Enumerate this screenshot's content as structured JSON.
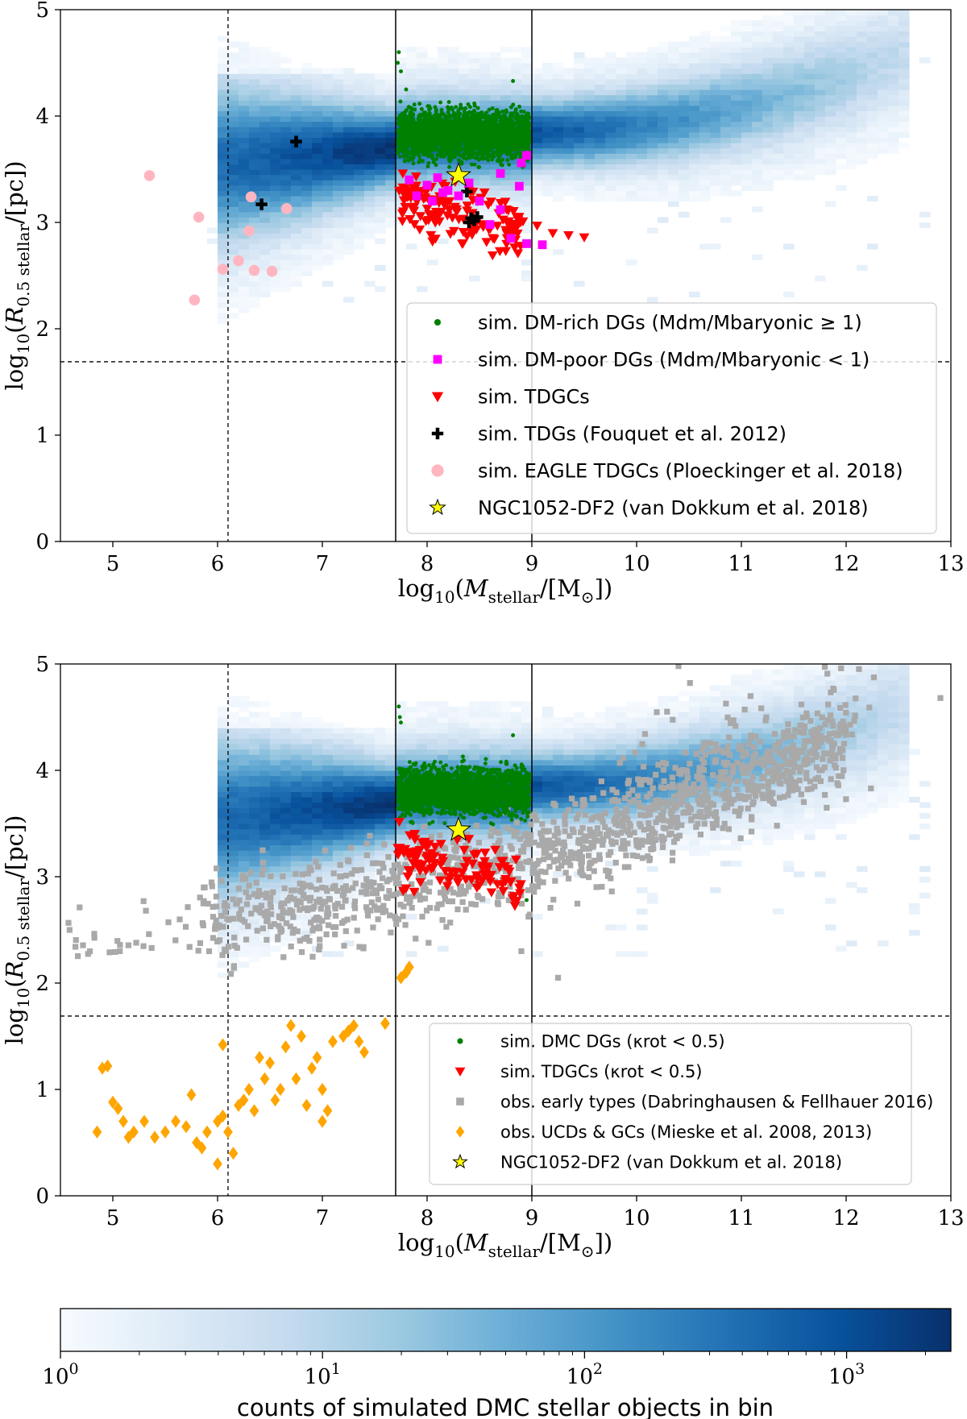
{
  "chart_data": [
    {
      "type": "scatter",
      "xlim": [
        4.5,
        13
      ],
      "ylim": [
        0,
        5
      ],
      "xticks": [
        "5",
        "6",
        "7",
        "8",
        "9",
        "10",
        "11",
        "12",
        "13"
      ],
      "yticks": [
        "0",
        "1",
        "2",
        "3",
        "4",
        "5"
      ],
      "xlabel": "log10(Mstellar/[M⊙])",
      "ylabel": "log10(R0.5 stellar/[pc])",
      "reference_lines": {
        "vertical_dashed": [
          6.1
        ],
        "vertical_solid": [
          7.7,
          9.0
        ],
        "horizontal_dashed": [
          1.69
        ]
      },
      "legend_position": "center-right",
      "legend": [
        {
          "label": "sim. DM-rich DGs (Mdm/Mbaryonic ≥ 1)",
          "marker": "dot",
          "color": "#008000"
        },
        {
          "label": "sim. DM-poor DGs (Mdm/Mbaryonic < 1)",
          "marker": "square",
          "color": "#ff00ff"
        },
        {
          "label": "sim. TDGCs",
          "marker": "triangle-down",
          "color": "#ff0000"
        },
        {
          "label": "sim. TDGs (Fouquet et al. 2012)",
          "marker": "plus",
          "color": "#000000"
        },
        {
          "label": "sim. EAGLE TDGCs (Ploeckinger et al. 2018)",
          "marker": "circle",
          "color": "#ffb6c1"
        },
        {
          "label": "NGC1052-DF2 (van Dokkum et al. 2018)",
          "marker": "star",
          "color": "#ffff00"
        }
      ],
      "series": [
        {
          "name": "sim. TDGs (Fouquet et al. 2012)",
          "points": [
            [
              6.75,
              3.76
            ],
            [
              6.42,
              3.17
            ],
            [
              8.38,
              3.29
            ],
            [
              8.42,
              3.04
            ],
            [
              8.45,
              3.02
            ],
            [
              8.48,
              3.05
            ],
            [
              8.4,
              3.0
            ]
          ]
        },
        {
          "name": "sim. EAGLE TDGCs (Ploeckinger et al. 2018)",
          "points": [
            [
              5.35,
              3.44
            ],
            [
              5.82,
              3.05
            ],
            [
              6.32,
              3.24
            ],
            [
              6.66,
              3.13
            ],
            [
              6.3,
              2.92
            ],
            [
              6.2,
              2.64
            ],
            [
              6.05,
              2.56
            ],
            [
              6.35,
              2.55
            ],
            [
              6.52,
              2.54
            ],
            [
              5.78,
              2.27
            ]
          ]
        },
        {
          "name": "sim. DM-poor DGs (Mdm/Mbaryonic < 1)",
          "points": [
            [
              8.1,
              3.42
            ],
            [
              7.83,
              3.4
            ],
            [
              8.0,
              3.35
            ],
            [
              8.2,
              3.3
            ],
            [
              8.4,
              3.37
            ],
            [
              8.7,
              3.46
            ],
            [
              8.9,
              3.56
            ],
            [
              8.95,
              3.63
            ],
            [
              8.88,
              3.34
            ],
            [
              8.5,
              3.2
            ],
            [
              8.3,
              3.25
            ],
            [
              8.05,
              3.2
            ],
            [
              7.9,
              3.25
            ],
            [
              8.15,
              3.28
            ],
            [
              8.6,
              2.98
            ],
            [
              8.8,
              2.85
            ],
            [
              8.95,
              2.8
            ],
            [
              9.1,
              2.79
            ],
            [
              8.7,
              3.12
            ]
          ]
        },
        {
          "name": "NGC1052-DF2 (van Dokkum et al. 2018)",
          "points": [
            [
              8.3,
              3.44
            ]
          ]
        }
      ]
    },
    {
      "type": "scatter",
      "xlim": [
        4.5,
        13
      ],
      "ylim": [
        0,
        5
      ],
      "xticks": [
        "5",
        "6",
        "7",
        "8",
        "9",
        "10",
        "11",
        "12",
        "13"
      ],
      "yticks": [
        "0",
        "1",
        "2",
        "3",
        "4",
        "5"
      ],
      "xlabel": "log10(Mstellar/[M⊙])",
      "ylabel": "log10(R0.5 stellar/[pc])",
      "reference_lines": {
        "vertical_dashed": [
          6.1
        ],
        "vertical_solid": [
          7.7,
          9.0
        ],
        "horizontal_dashed": [
          1.69
        ]
      },
      "legend_position": "lower-right",
      "legend": [
        {
          "label": "sim. DMC DGs (κrot < 0.5)",
          "marker": "dot",
          "color": "#008000"
        },
        {
          "label": "sim. TDGCs (κrot < 0.5)",
          "marker": "triangle-down",
          "color": "#ff0000"
        },
        {
          "label": "obs. early types (Dabringhausen & Fellhauer 2016)",
          "marker": "square",
          "color": "#a9a9a9"
        },
        {
          "label": "obs. UCDs & GCs (Mieske et al. 2008, 2013)",
          "marker": "diamond",
          "color": "#ffa500"
        },
        {
          "label": "NGC1052-DF2 (van Dokkum et al. 2018)",
          "marker": "star",
          "color": "#ffff00"
        }
      ],
      "series": [
        {
          "name": "obs. UCDs & GCs (Mieske et al. 2008, 2013)",
          "points": [
            [
              4.85,
              0.6
            ],
            [
              4.9,
              1.2
            ],
            [
              4.95,
              1.22
            ],
            [
              5.0,
              0.88
            ],
            [
              5.05,
              0.82
            ],
            [
              5.1,
              0.7
            ],
            [
              5.15,
              0.55
            ],
            [
              5.2,
              0.6
            ],
            [
              5.3,
              0.7
            ],
            [
              5.4,
              0.55
            ],
            [
              5.5,
              0.6
            ],
            [
              5.6,
              0.7
            ],
            [
              5.7,
              0.65
            ],
            [
              5.75,
              0.95
            ],
            [
              5.8,
              0.5
            ],
            [
              5.85,
              0.45
            ],
            [
              5.9,
              0.6
            ],
            [
              6.0,
              0.7
            ],
            [
              6.05,
              0.75
            ],
            [
              6.0,
              0.3
            ],
            [
              6.1,
              0.6
            ],
            [
              6.15,
              0.4
            ],
            [
              6.2,
              0.85
            ],
            [
              6.25,
              0.9
            ],
            [
              6.3,
              1.0
            ],
            [
              6.35,
              0.8
            ],
            [
              6.4,
              1.3
            ],
            [
              6.45,
              1.1
            ],
            [
              6.5,
              1.25
            ],
            [
              6.55,
              0.9
            ],
            [
              6.6,
              1.0
            ],
            [
              6.65,
              1.4
            ],
            [
              6.7,
              1.6
            ],
            [
              6.75,
              1.1
            ],
            [
              6.8,
              1.5
            ],
            [
              6.85,
              0.85
            ],
            [
              6.9,
              1.2
            ],
            [
              6.95,
              1.3
            ],
            [
              7.0,
              1.0
            ],
            [
              7.05,
              0.8
            ],
            [
              7.1,
              1.45
            ],
            [
              7.2,
              1.5
            ],
            [
              7.25,
              1.55
            ],
            [
              7.3,
              1.6
            ],
            [
              7.35,
              1.45
            ],
            [
              7.4,
              1.35
            ],
            [
              7.6,
              1.62
            ],
            [
              6.05,
              1.42
            ],
            [
              7.0,
              0.7
            ],
            [
              7.75,
              2.05
            ],
            [
              7.8,
              2.1
            ],
            [
              7.83,
              2.15
            ]
          ]
        },
        {
          "name": "NGC1052-DF2 (van Dokkum et al. 2018)",
          "points": [
            [
              8.3,
              3.44
            ]
          ]
        }
      ]
    }
  ],
  "colorbar": {
    "label": "counts of simulated DMC stellar objects in bin",
    "ticks": [
      {
        "base": "10",
        "exp": "0",
        "value": 1
      },
      {
        "base": "10",
        "exp": "1",
        "value": 10
      },
      {
        "base": "10",
        "exp": "2",
        "value": 100
      },
      {
        "base": "10",
        "exp": "3",
        "value": 1000
      }
    ],
    "range": [
      1,
      2500
    ],
    "colormap": [
      "#f7fbff",
      "#deebf7",
      "#c6dbef",
      "#9ecae1",
      "#6baed6",
      "#4292c6",
      "#2171b5",
      "#08519c",
      "#08306b"
    ]
  }
}
